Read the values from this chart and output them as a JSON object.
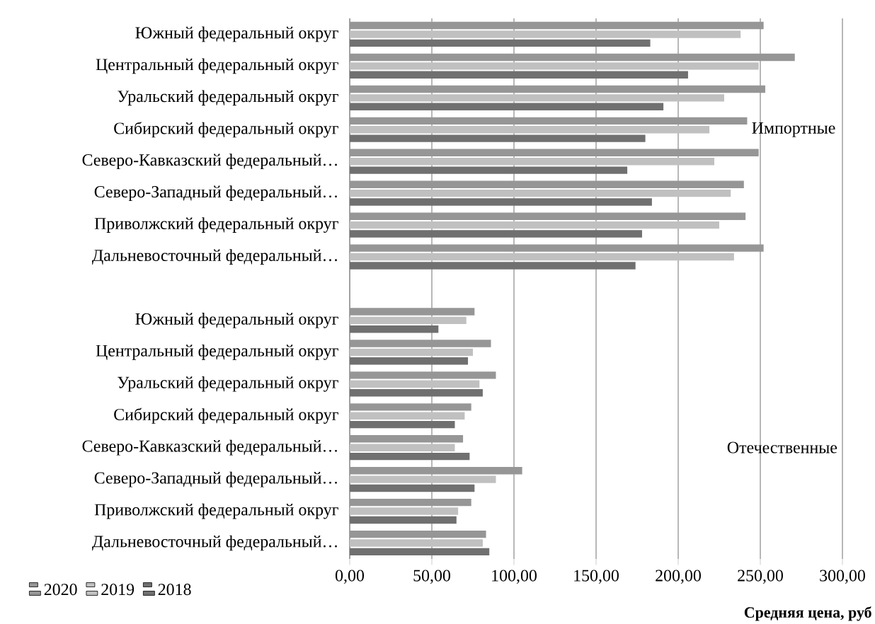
{
  "chart_data": {
    "type": "bar",
    "orientation": "horizontal",
    "xlabel": "Средняя цена, руб",
    "categories": [
      "Южный федеральный округ",
      "Центральный федеральный округ",
      "Уральский федеральный округ",
      "Сибирский федеральный округ",
      "Северо-Кавказский федеральный…",
      "Северо-Западный федеральный…",
      "Приволжский федеральный округ",
      "Дальневосточный федеральный…",
      null,
      "Южный федеральный округ",
      "Центральный федеральный округ",
      "Уральский федеральный округ",
      "Сибирский федеральный округ",
      "Северо-Кавказский федеральный…",
      "Северо-Западный федеральный…",
      "Приволжский федеральный округ",
      "Дальневосточный федеральный…"
    ],
    "series": [
      {
        "name": "2020",
        "color": "#969696",
        "values": [
          252,
          271,
          253,
          242,
          249,
          240,
          241,
          252,
          null,
          76,
          86,
          89,
          74,
          69,
          105,
          74,
          83
        ]
      },
      {
        "name": "2019",
        "color": "#c0c0c0",
        "values": [
          238,
          249,
          228,
          219,
          222,
          232,
          225,
          234,
          null,
          71,
          75,
          79,
          70,
          64,
          89,
          66,
          81
        ]
      },
      {
        "name": "2018",
        "color": "#707070",
        "values": [
          183,
          206,
          191,
          180,
          169,
          184,
          178,
          174,
          null,
          54,
          72,
          81,
          64,
          73,
          76,
          65,
          85
        ]
      }
    ],
    "xlim": [
      0,
      300
    ],
    "xticks": [
      {
        "value": 0,
        "label": "0,00"
      },
      {
        "value": 50,
        "label": "50,00"
      },
      {
        "value": 100,
        "label": "100,00"
      },
      {
        "value": 150,
        "label": "150,00"
      },
      {
        "value": 200,
        "label": "200,00"
      },
      {
        "value": 250,
        "label": "250,00"
      },
      {
        "value": 300,
        "label": "300,00"
      }
    ],
    "annotations": [
      "Импортные",
      "Отечественные"
    ],
    "grid": "x",
    "legend": "bottom left"
  }
}
